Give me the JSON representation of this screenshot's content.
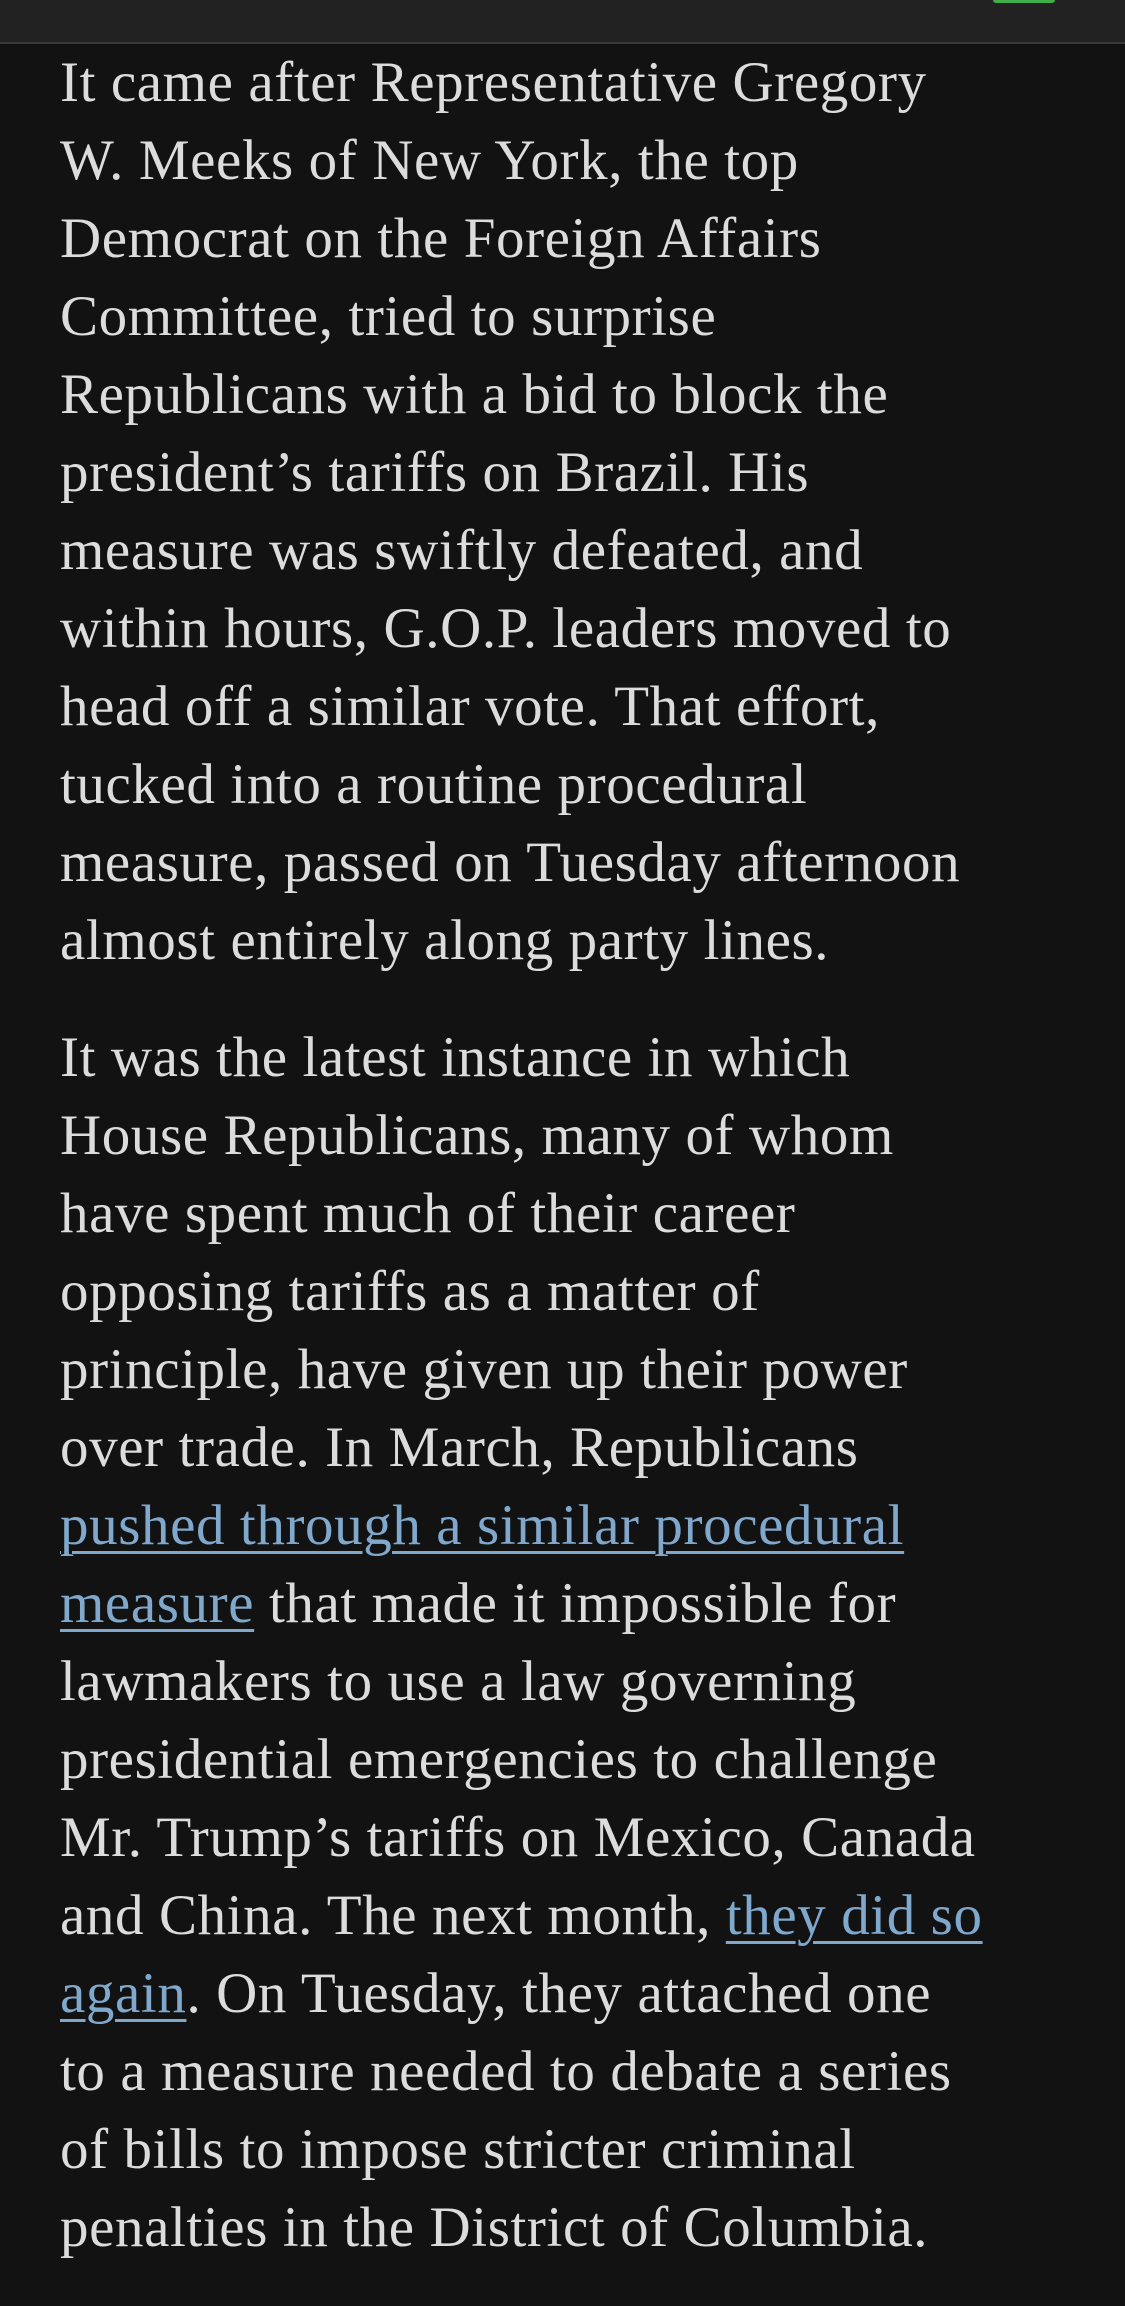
{
  "colors": {
    "background": "#121212",
    "text": "#dcdcdc",
    "link": "#7fa8cc",
    "topbar": "#222222",
    "accent": "#3fae4a"
  },
  "article": {
    "paragraphs": [
      [
        [
          {
            "text": "It came after Representative Gregory"
          }
        ],
        [
          {
            "text": "W. Meeks of New York, the top"
          }
        ],
        [
          {
            "text": "Democrat on the Foreign Affairs"
          }
        ],
        [
          {
            "text": "Committee, tried to surprise"
          }
        ],
        [
          {
            "text": "Republicans with a bid to block the"
          }
        ],
        [
          {
            "text": "president’s tariffs on Brazil. His"
          }
        ],
        [
          {
            "text": "measure was swiftly defeated, and"
          }
        ],
        [
          {
            "text": "within hours, G.O.P. leaders moved to"
          }
        ],
        [
          {
            "text": "head off a similar vote. That effort,"
          }
        ],
        [
          {
            "text": "tucked into a routine procedural"
          }
        ],
        [
          {
            "text": "measure, passed on Tuesday afternoon"
          }
        ],
        [
          {
            "text": "almost entirely along party lines."
          }
        ]
      ],
      [
        [
          {
            "text": "It was the latest instance in which"
          }
        ],
        [
          {
            "text": "House Republicans, many of whom"
          }
        ],
        [
          {
            "text": "have spent much of their career"
          }
        ],
        [
          {
            "text": "opposing tariffs as a matter of"
          }
        ],
        [
          {
            "text": "principle, have given up their power"
          }
        ],
        [
          {
            "text": "over trade. In March, Republicans"
          }
        ],
        [
          {
            "text": "pushed through a similar procedural",
            "link": true
          }
        ],
        [
          {
            "text": "measure",
            "link": true
          },
          {
            "text": " that made it impossible for"
          }
        ],
        [
          {
            "text": "lawmakers to use a law governing"
          }
        ],
        [
          {
            "text": "presidential emergencies to challenge"
          }
        ],
        [
          {
            "text": "Mr. Trump’s tariffs on Mexico, Canada"
          }
        ],
        [
          {
            "text": "and China. The next month, "
          },
          {
            "text": "they did so",
            "link": true
          }
        ],
        [
          {
            "text": "again",
            "link": true
          },
          {
            "text": ". On Tuesday, they attached one"
          }
        ],
        [
          {
            "text": "to a measure needed to debate a series"
          }
        ],
        [
          {
            "text": "of bills to impose stricter criminal"
          }
        ],
        [
          {
            "text": "penalties in the District of Columbia."
          }
        ]
      ]
    ]
  }
}
